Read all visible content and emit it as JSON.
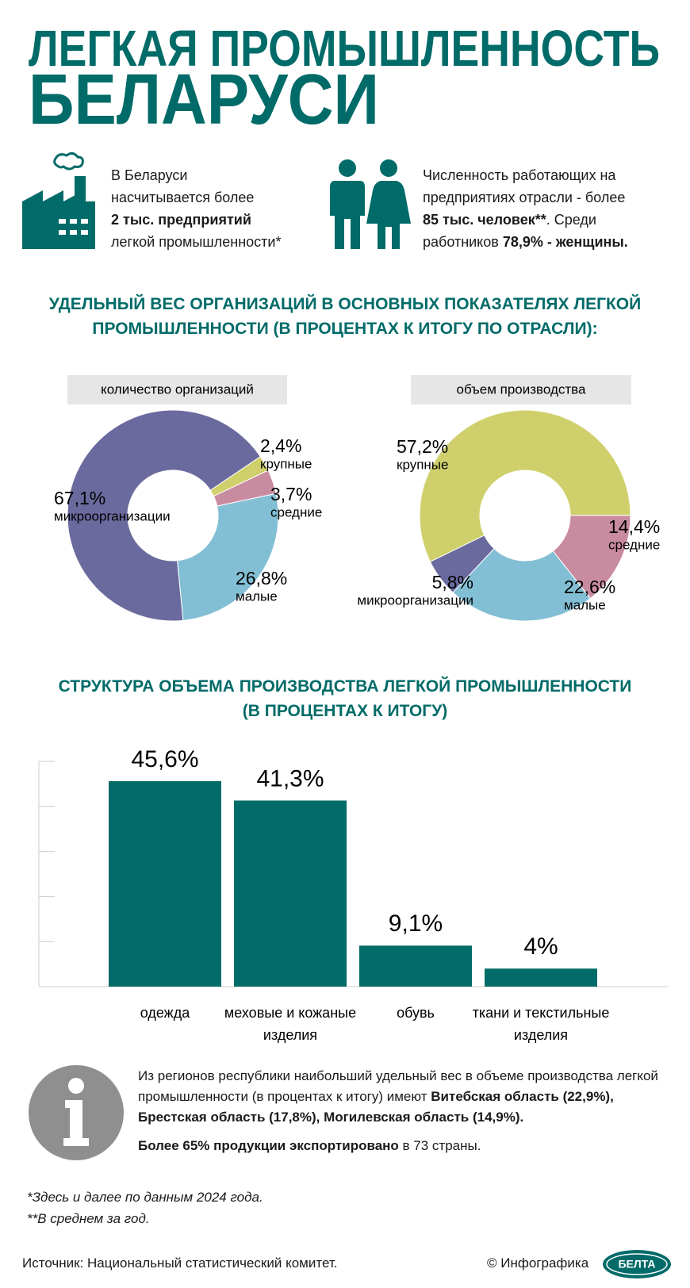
{
  "header": {
    "title_lines": [
      "ЛЕГКАЯ ПРОМЫШЛЕННОСТЬ",
      "БЕЛАРУСИ"
    ]
  },
  "facts": [
    [
      [
        {
          "t": "В Беларуси"
        }
      ],
      [
        {
          "t": "насчитывается более"
        }
      ],
      [
        {
          "t": "2 тыс. предприятий",
          "b": true
        }
      ],
      [
        {
          "t": "легкой промышленности*"
        }
      ]
    ],
    [
      [
        {
          "t": "Численность работающих на"
        }
      ],
      [
        {
          "t": "предприятиях отрасли - более"
        }
      ],
      [
        {
          "t": "85 тыс. человек**",
          "b": true
        },
        {
          "t": ". Среди"
        }
      ],
      [
        {
          "t": "работников "
        },
        {
          "t": "78,9% - женщины.",
          "b": true
        }
      ]
    ]
  ],
  "donut_section": {
    "title": "УДЕЛЬНЫЙ ВЕС ОРГАНИЗАЦИЙ В ОСНОВНЫХ ПОКАЗАТЕЛЯХ ЛЕГКОЙ\nПРОМЫШЛЕННОСТИ (В ПРОЦЕНТАХ К ИТОГУ ПО ОТРАСЛИ):"
  },
  "chart_data": [
    {
      "type": "donut",
      "title": "количество организаций",
      "categories": [
        "крупные",
        "средние",
        "малые",
        "микроорганизации"
      ],
      "values": [
        2.4,
        3.7,
        26.8,
        67.1
      ],
      "value_labels": [
        "2,4%",
        "3,7%",
        "26,8%",
        "67,1%"
      ],
      "colors": [
        "#cfd06c",
        "#c98ba0",
        "#82bfd4",
        "#6b6a9e"
      ]
    },
    {
      "type": "donut",
      "title": "объем производства",
      "categories": [
        "крупные",
        "средние",
        "малые",
        "микроорганизации"
      ],
      "values": [
        57.2,
        14.4,
        22.6,
        5.8
      ],
      "value_labels": [
        "57,2%",
        "14,4%",
        "22,6%",
        "5,8%"
      ],
      "colors": [
        "#cfd06c",
        "#c98ba0",
        "#82bfd4",
        "#6b6a9e"
      ]
    },
    {
      "type": "bar",
      "title": "СТРУКТУРА ОБЪЕМА ПРОИЗВОДСТВА ЛЕГКОЙ ПРОМЫШЛЕННОСТИ\n(В ПРОЦЕНТАХ К ИТОГУ)",
      "categories": [
        "одежда",
        "меховые и кожаные\nизделия",
        "обувь",
        "ткани и текстильные\nизделия"
      ],
      "values": [
        45.6,
        41.3,
        9.1,
        4
      ],
      "value_labels": [
        "45,6%",
        "41,3%",
        "9,1%",
        "4%"
      ],
      "color": "#006b68",
      "ylim": [
        0,
        50
      ],
      "yticks": [
        0,
        10,
        20,
        30,
        40,
        50
      ]
    }
  ],
  "info": {
    "paragraphs": [
      [
        {
          "t": "Из регионов республики наибольший удельный вес в объеме производства легкой промышленности (в процентах к итогу) имеют "
        },
        {
          "t": "Витебская область (22,9%), Брестская область (17,8%), Могилевская область (14,9%).",
          "b": true
        }
      ],
      [
        {
          "t": "Более 65% продукции экспортировано",
          "b": true
        },
        {
          "t": " в 73 страны."
        }
      ]
    ]
  },
  "footnotes": [
    "*Здесь и далее по данным 2024 года.",
    "**В среднем за год."
  ],
  "source": "Источник: Национальный статистический комитет.",
  "credit": "© Инфографика",
  "logo": "БЕЛТА"
}
